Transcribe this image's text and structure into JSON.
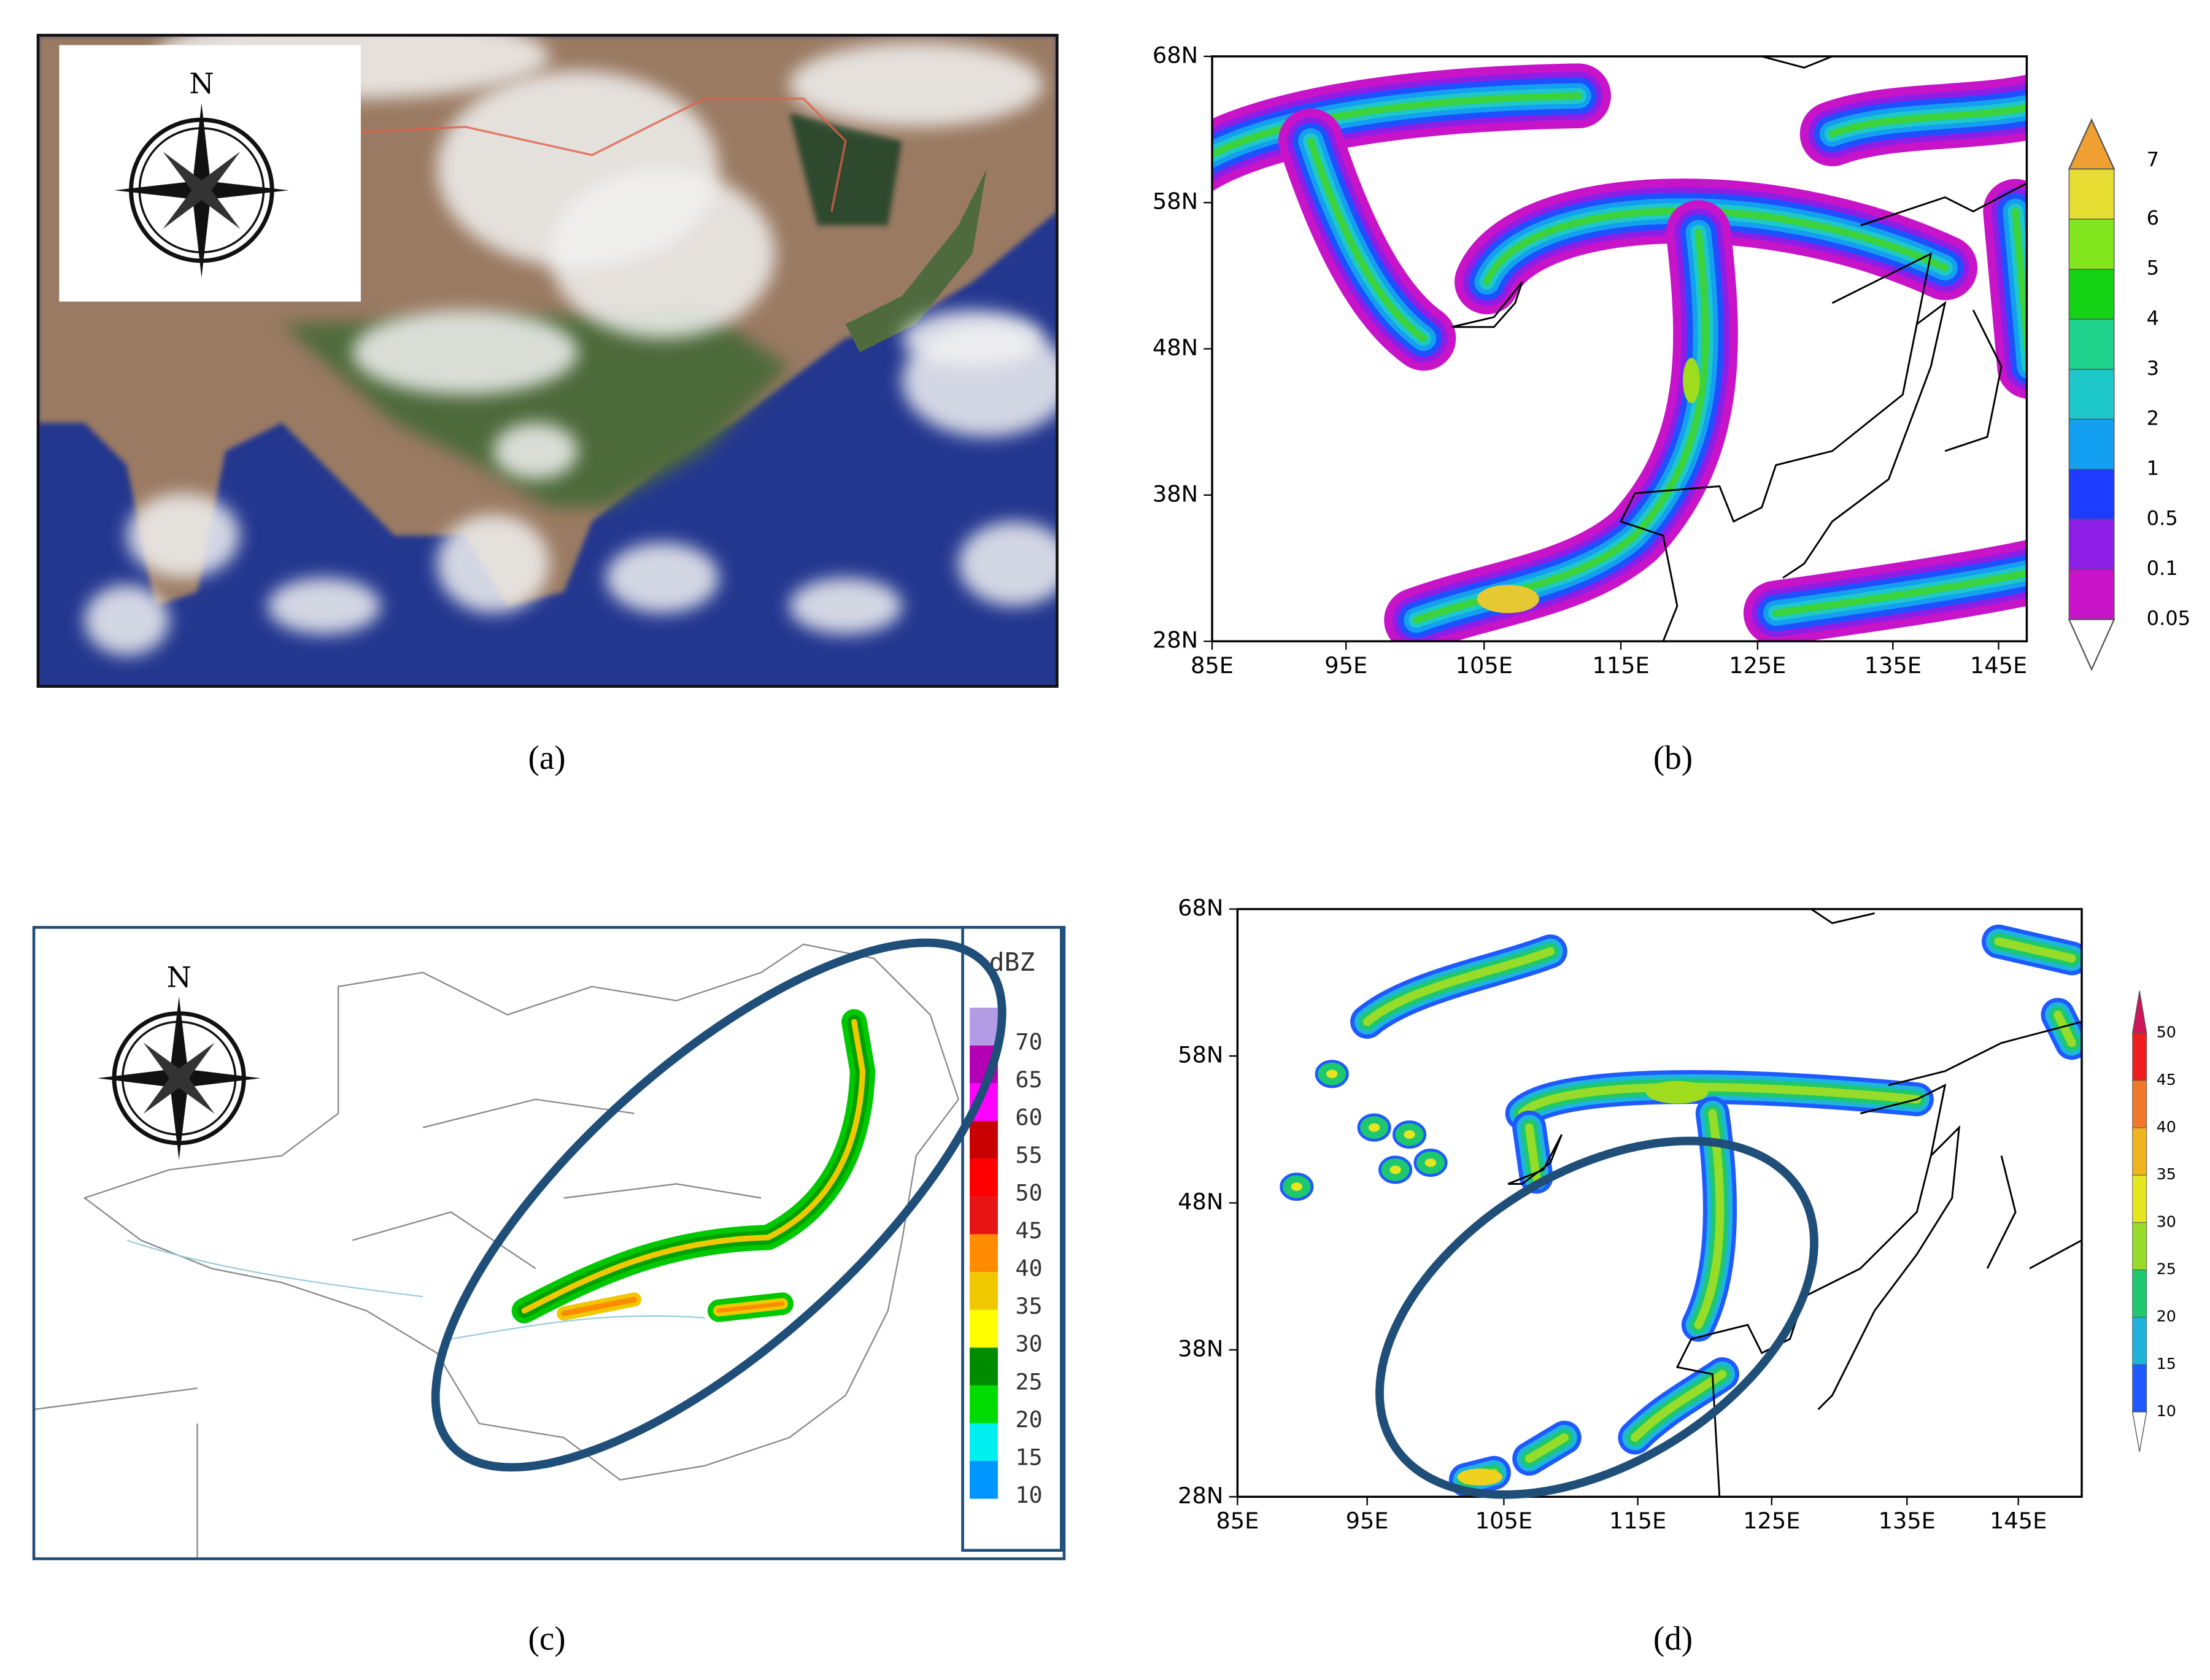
{
  "panels": [
    {
      "label": "(a)",
      "compass": "N"
    },
    {
      "label": "(b)",
      "lat_labels": [
        "68N",
        "58N",
        "48N",
        "38N",
        "28N"
      ],
      "lon_labels": [
        "85E",
        "95E",
        "105E",
        "115E",
        "125E",
        "135E",
        "145E"
      ],
      "colorbar_labels": [
        "7",
        "6",
        "5",
        "4",
        "3",
        "2",
        "1",
        "0.5",
        "0.1",
        "0.05"
      ]
    },
    {
      "label": "(c)",
      "compass": "N",
      "legend_title": "dBZ",
      "legend_labels": [
        "70",
        "65",
        "60",
        "55",
        "50",
        "45",
        "40",
        "35",
        "30",
        "25",
        "20",
        "15",
        "10"
      ]
    },
    {
      "label": "(d)",
      "lat_labels": [
        "68N",
        "58N",
        "48N",
        "38N",
        "28N"
      ],
      "lon_labels": [
        "85E",
        "95E",
        "105E",
        "115E",
        "125E",
        "135E",
        "145E"
      ],
      "colorbar_labels": [
        "50",
        "45",
        "40",
        "35",
        "30",
        "25",
        "20",
        "15",
        "10"
      ]
    }
  ]
}
